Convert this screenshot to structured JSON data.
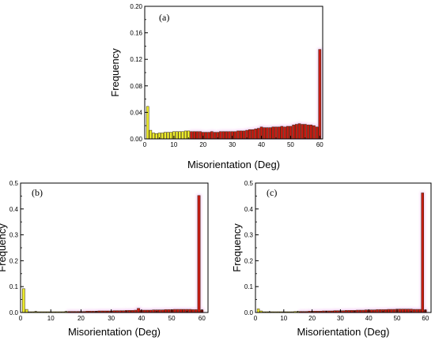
{
  "panels": [
    {
      "id": "a",
      "panel_label": "(a)",
      "chart_data": {
        "type": "bar",
        "xlabel": "Misorientation (Deg)",
        "ylabel": "Frequency",
        "xlim": [
          0,
          61
        ],
        "ylim": [
          0,
          0.2
        ],
        "x_ticks": [
          0,
          10,
          20,
          30,
          40,
          50,
          60
        ],
        "x_tick_labels": [
          "0",
          "10",
          "20",
          "30",
          "40",
          "50",
          "60"
        ],
        "y_ticks": [
          0,
          0.04,
          0.08,
          0.12,
          0.16,
          0.2
        ],
        "y_tick_labels": [
          "0.00",
          "0.04",
          "0.08",
          "0.12",
          "0.16",
          "0.20"
        ],
        "bin_width": 1,
        "x": [
          1,
          2,
          3,
          4,
          5,
          6,
          7,
          8,
          9,
          10,
          11,
          12,
          13,
          14,
          15,
          16,
          17,
          18,
          19,
          20,
          21,
          22,
          23,
          24,
          25,
          26,
          27,
          28,
          29,
          30,
          31,
          32,
          33,
          34,
          35,
          36,
          37,
          38,
          39,
          40,
          41,
          42,
          43,
          44,
          45,
          46,
          47,
          48,
          49,
          50,
          51,
          52,
          53,
          54,
          55,
          56,
          57,
          58,
          59,
          60
        ],
        "values": [
          0.049,
          0.013,
          0.009,
          0.008,
          0.009,
          0.009,
          0.01,
          0.01,
          0.01,
          0.011,
          0.011,
          0.011,
          0.011,
          0.012,
          0.012,
          0.011,
          0.011,
          0.011,
          0.011,
          0.01,
          0.01,
          0.01,
          0.011,
          0.01,
          0.01,
          0.011,
          0.011,
          0.011,
          0.011,
          0.011,
          0.011,
          0.012,
          0.012,
          0.012,
          0.013,
          0.014,
          0.014,
          0.015,
          0.016,
          0.018,
          0.017,
          0.017,
          0.017,
          0.018,
          0.018,
          0.018,
          0.019,
          0.018,
          0.019,
          0.019,
          0.021,
          0.022,
          0.023,
          0.022,
          0.022,
          0.021,
          0.021,
          0.02,
          0.018,
          0.135
        ],
        "low_angle_cutoff": 15
      }
    },
    {
      "id": "b",
      "panel_label": "(b)",
      "chart_data": {
        "type": "bar",
        "xlabel": "Misorientation (Deg)",
        "ylabel": "Frequency",
        "xlim": [
          0,
          62
        ],
        "ylim": [
          0,
          0.5
        ],
        "x_ticks": [
          0,
          10,
          20,
          30,
          40,
          50,
          60
        ],
        "x_tick_labels": [
          "0",
          "10",
          "20",
          "30",
          "40",
          "50",
          "60"
        ],
        "y_ticks": [
          0,
          0.1,
          0.2,
          0.3,
          0.4,
          0.5
        ],
        "y_tick_labels": [
          "0.0",
          "0.1",
          "0.2",
          "0.3",
          "0.4",
          "0.5"
        ],
        "bin_width": 1,
        "x": [
          1,
          2,
          3,
          4,
          5,
          6,
          7,
          8,
          9,
          10,
          11,
          12,
          13,
          14,
          15,
          16,
          17,
          18,
          19,
          20,
          21,
          22,
          23,
          24,
          25,
          26,
          27,
          28,
          29,
          30,
          31,
          32,
          33,
          34,
          35,
          36,
          37,
          38,
          39,
          40,
          41,
          42,
          43,
          44,
          45,
          46,
          47,
          48,
          49,
          50,
          51,
          52,
          53,
          54,
          55,
          56,
          57,
          58,
          59,
          60
        ],
        "values": [
          0.092,
          0.012,
          0.003,
          0.003,
          0.004,
          0.003,
          0.003,
          0.003,
          0.003,
          0.003,
          0.003,
          0.003,
          0.003,
          0.003,
          0.004,
          0.004,
          0.004,
          0.004,
          0.004,
          0.004,
          0.004,
          0.005,
          0.005,
          0.005,
          0.005,
          0.006,
          0.006,
          0.006,
          0.006,
          0.006,
          0.007,
          0.007,
          0.007,
          0.007,
          0.008,
          0.008,
          0.008,
          0.009,
          0.016,
          0.009,
          0.009,
          0.009,
          0.009,
          0.01,
          0.01,
          0.01,
          0.01,
          0.011,
          0.011,
          0.011,
          0.012,
          0.012,
          0.012,
          0.012,
          0.012,
          0.012,
          0.011,
          0.011,
          0.452,
          0.01
        ],
        "low_angle_cutoff": 15
      }
    },
    {
      "id": "c",
      "panel_label": "(c)",
      "chart_data": {
        "type": "bar",
        "xlabel": "Misorientation (Deg)",
        "ylabel": "Frequency",
        "xlim": [
          0,
          62
        ],
        "ylim": [
          0,
          0.5
        ],
        "x_ticks": [
          0,
          10,
          20,
          30,
          40,
          50,
          60
        ],
        "x_tick_labels": [
          "0",
          "10",
          "20",
          "30",
          "40",
          "50",
          "60"
        ],
        "y_ticks": [
          0,
          0.1,
          0.2,
          0.3,
          0.4,
          0.5
        ],
        "y_tick_labels": [
          "0.0",
          "0.1",
          "0.2",
          "0.3",
          "0.4",
          "0.5"
        ],
        "bin_width": 1,
        "x": [
          1,
          2,
          3,
          4,
          5,
          6,
          7,
          8,
          9,
          10,
          11,
          12,
          13,
          14,
          15,
          16,
          17,
          18,
          19,
          20,
          21,
          22,
          23,
          24,
          25,
          26,
          27,
          28,
          29,
          30,
          31,
          32,
          33,
          34,
          35,
          36,
          37,
          38,
          39,
          40,
          41,
          42,
          43,
          44,
          45,
          46,
          47,
          48,
          49,
          50,
          51,
          52,
          53,
          54,
          55,
          56,
          57,
          58,
          59,
          60
        ],
        "values": [
          0.014,
          0.006,
          0.003,
          0.003,
          0.003,
          0.003,
          0.003,
          0.003,
          0.003,
          0.003,
          0.003,
          0.003,
          0.003,
          0.004,
          0.004,
          0.004,
          0.004,
          0.004,
          0.005,
          0.005,
          0.005,
          0.005,
          0.005,
          0.006,
          0.006,
          0.006,
          0.006,
          0.007,
          0.007,
          0.007,
          0.007,
          0.008,
          0.008,
          0.008,
          0.008,
          0.009,
          0.009,
          0.009,
          0.01,
          0.01,
          0.01,
          0.01,
          0.011,
          0.011,
          0.011,
          0.011,
          0.012,
          0.012,
          0.012,
          0.013,
          0.013,
          0.013,
          0.013,
          0.013,
          0.013,
          0.012,
          0.012,
          0.012,
          0.462,
          0.01
        ],
        "low_angle_cutoff": 15
      }
    }
  ],
  "colors": {
    "low_angle": "#ecec2a",
    "high_angle": "#c81a12",
    "bar_edge": "#3a2a10",
    "glow": "#f0b8f0",
    "axis": "#000000"
  }
}
